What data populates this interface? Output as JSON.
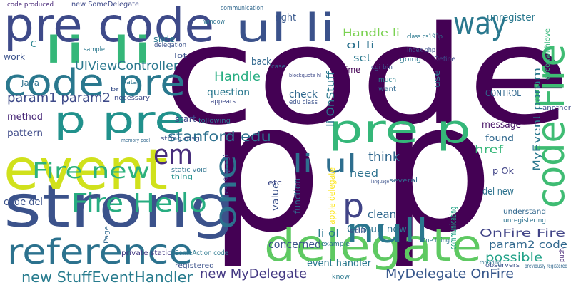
{
  "words": [
    "code",
    "p p",
    "strong",
    "event",
    "delegate",
    "pre code",
    "code pre",
    "li li",
    "ul li",
    "p pre",
    "pre p",
    "reference",
    "Fire Hello",
    "Fire new",
    "em",
    "one",
    "null",
    "li ul",
    "p",
    "code Fire",
    "way",
    "UIViewController",
    "stanford edu",
    "new StuffEventHandler",
    "new MyDelegate",
    "MyDelegate OnFire",
    "OnFire Fire",
    "param2 code",
    "possible",
    "Handle",
    "Handle li",
    "ol li",
    "set",
    "time",
    "href",
    "found",
    "MyEvent param",
    "message",
    "CONTROL",
    "unregister",
    "right",
    "think",
    "need",
    "concerned",
    "OnStuff new",
    "li OnStuff",
    "param1 param2",
    "method",
    "pattern",
    "Java",
    "work",
    "C",
    "slide",
    "check",
    "question",
    "back",
    "start",
    "code del",
    "del new",
    "event handler",
    "clean",
    "li ol",
    "value",
    "etc",
    "function",
    "communicating",
    "apple delegate",
    "use",
    "private static",
    "SomeAction code",
    "registered",
    "new SomeDelegate",
    "code produced",
    "necessary",
    "following",
    "string msg",
    "static void",
    "thing",
    "p Ok",
    "Define",
    "cocoawithlove",
    "cgi bin",
    "case",
    "edu class",
    "want",
    "much",
    "understand",
    "unregistering",
    "observers",
    "previously registered",
    "push",
    "another",
    "One thing",
    "still",
    "know",
    "several",
    "example",
    "cs193p cgi",
    "Page",
    "lot",
    "sample",
    "delegation",
    "window",
    "communication",
    "class cs193p",
    "index php",
    "going",
    "appears",
    "Data",
    "br",
    "memory pool",
    "blockquote hl",
    "language",
    "threading"
  ]
}
